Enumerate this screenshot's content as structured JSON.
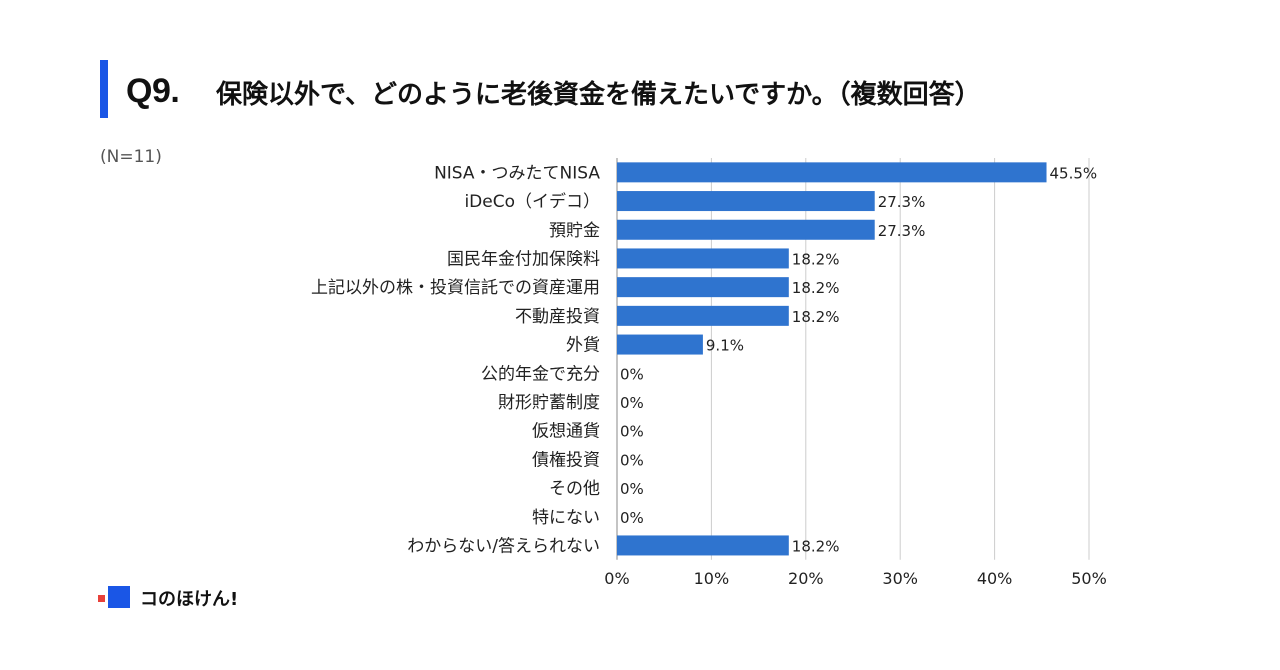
{
  "header": {
    "question_number": "Q9.",
    "question_text": "保険以外で、どのように老後資金を備えたいですか。（複数回答）",
    "sample_size": "(N=11)"
  },
  "colors": {
    "accent": "#1a56e6",
    "bar": "#2f74cf",
    "grid": "#cccccc",
    "logo_dot": "#e8413a"
  },
  "chart_data": {
    "type": "bar",
    "orientation": "horizontal",
    "title": "保険以外で、どのように老後資金を備えたいですか。（複数回答）",
    "xlabel": "",
    "ylabel": "",
    "xlim": [
      0,
      50
    ],
    "ticks": [
      0,
      10,
      20,
      30,
      40,
      50
    ],
    "tick_labels": [
      "0%",
      "10%",
      "20%",
      "30%",
      "40%",
      "50%"
    ],
    "grid": true,
    "categories": [
      "NISA・つみたてNISA",
      "iDeCo（イデコ）",
      "預貯金",
      "国民年金付加保険料",
      "上記以外の株・投資信託での資産運用",
      "不動産投資",
      "外貨",
      "公的年金で充分",
      "財形貯蓄制度",
      "仮想通貨",
      "債権投資",
      "その他",
      "特にない",
      "わからない/答えられない"
    ],
    "values": [
      45.5,
      27.3,
      27.3,
      18.2,
      18.2,
      18.2,
      9.1,
      0,
      0,
      0,
      0,
      0,
      0,
      18.2
    ],
    "value_labels": [
      "45.5%",
      "27.3%",
      "27.3%",
      "18.2%",
      "18.2%",
      "18.2%",
      "9.1%",
      "0%",
      "0%",
      "0%",
      "0%",
      "0%",
      "0%",
      "18.2%"
    ]
  },
  "footer": {
    "logo_text": "コのほけん!"
  }
}
